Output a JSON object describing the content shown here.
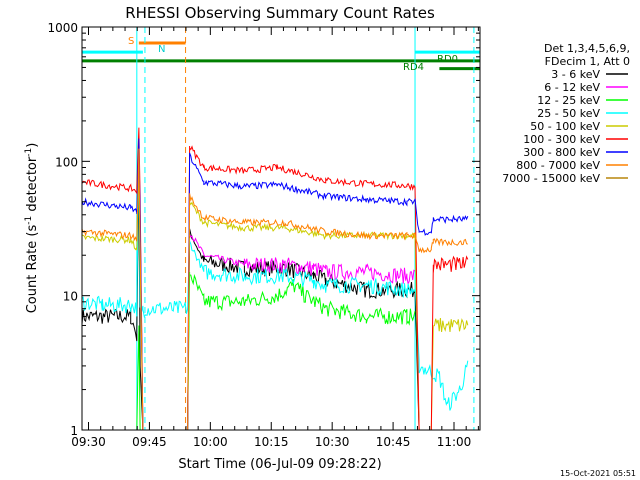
{
  "chart_data": {
    "type": "line",
    "title": "RHESSI Observing Summary Count Rates",
    "xlabel": "Start Time (06-Jul-09 09:28:22)",
    "ylabel_parts": [
      "Count Rate (s",
      "-1",
      " detector",
      "-1",
      ")"
    ],
    "x_range_minutes": [
      0,
      98
    ],
    "x_ticks": [
      {
        "label": "09:30",
        "minute": 1.6
      },
      {
        "label": "09:45",
        "minute": 16.6
      },
      {
        "label": "10:00",
        "minute": 31.6
      },
      {
        "label": "10:15",
        "minute": 46.6
      },
      {
        "label": "10:30",
        "minute": 61.6
      },
      {
        "label": "10:45",
        "minute": 76.6
      },
      {
        "label": "11:00",
        "minute": 91.6
      }
    ],
    "y_scale": "log",
    "y_range": [
      1,
      1000
    ],
    "y_ticks": [
      {
        "label": "1",
        "value": 1
      },
      {
        "label": "10",
        "value": 10
      },
      {
        "label": "100",
        "value": 100
      },
      {
        "label": "1000",
        "value": 1000
      }
    ],
    "legend_header": [
      "Det 1,3,4,5,6,9,",
      "FDecim 1, Att 0"
    ],
    "legend_position": "right",
    "series": [
      {
        "name": "3 - 6 keV",
        "color": "#000000",
        "points": [
          [
            0,
            7
          ],
          [
            12,
            7
          ],
          [
            13.5,
            5
          ],
          [
            14,
            100
          ],
          [
            14.3,
            3
          ],
          [
            15,
            1
          ],
          [
            25,
            1
          ],
          [
            26,
            1
          ],
          [
            26.5,
            30
          ],
          [
            30,
            18
          ],
          [
            40,
            16
          ],
          [
            50,
            16
          ],
          [
            57,
            14
          ],
          [
            60,
            13
          ],
          [
            70,
            11
          ],
          [
            80,
            11
          ],
          [
            82,
            11
          ],
          [
            83,
            1
          ],
          [
            98,
            1
          ]
        ]
      },
      {
        "name": "6 - 12 keV",
        "color": "#ff00ff",
        "points": [
          [
            26.5,
            30
          ],
          [
            30,
            20
          ],
          [
            40,
            17
          ],
          [
            50,
            17
          ],
          [
            57,
            16
          ],
          [
            60,
            15
          ],
          [
            70,
            15
          ],
          [
            80,
            14
          ],
          [
            82,
            14
          ]
        ]
      },
      {
        "name": "12 - 25 keV",
        "color": "#00ff00",
        "points": [
          [
            0,
            1
          ],
          [
            2,
            1
          ],
          [
            3,
            1
          ],
          [
            4,
            1
          ],
          [
            6,
            1
          ],
          [
            8,
            1
          ],
          [
            12,
            1
          ],
          [
            13.5,
            1
          ],
          [
            14,
            6
          ],
          [
            14.3,
            1
          ],
          [
            26,
            1
          ],
          [
            26.5,
            15
          ],
          [
            30,
            9
          ],
          [
            40,
            9
          ],
          [
            48,
            10
          ],
          [
            52,
            12
          ],
          [
            55,
            10
          ],
          [
            60,
            8
          ],
          [
            70,
            7
          ],
          [
            80,
            7
          ],
          [
            82,
            7
          ]
        ]
      },
      {
        "name": "25 - 50 keV",
        "color": "#00ffff",
        "points": [
          [
            0,
            9
          ],
          [
            5,
            8.5
          ],
          [
            12,
            8.5
          ],
          [
            13.5,
            8
          ],
          [
            14,
            120
          ],
          [
            14.3,
            8
          ],
          [
            15,
            8
          ],
          [
            16,
            8
          ],
          [
            26,
            8
          ],
          [
            26.5,
            25
          ],
          [
            30,
            15
          ],
          [
            40,
            14
          ],
          [
            50,
            14
          ],
          [
            57,
            13
          ],
          [
            60,
            12
          ],
          [
            70,
            12
          ],
          [
            80,
            11
          ],
          [
            82,
            11
          ],
          [
            83,
            3
          ],
          [
            88,
            2.5
          ],
          [
            90,
            1.5
          ],
          [
            93,
            2
          ],
          [
            95,
            3
          ]
        ]
      },
      {
        "name": "50 - 100 keV",
        "color": "#cccc00",
        "points": [
          [
            0,
            27
          ],
          [
            12,
            26
          ],
          [
            13.5,
            22
          ],
          [
            14,
            90
          ],
          [
            14.3,
            20
          ],
          [
            15,
            1
          ],
          [
            26,
            1
          ],
          [
            26.5,
            50
          ],
          [
            30,
            35
          ],
          [
            40,
            32
          ],
          [
            50,
            32
          ],
          [
            60,
            28
          ],
          [
            70,
            28
          ],
          [
            80,
            28
          ],
          [
            82,
            28
          ],
          [
            83,
            1
          ],
          [
            86,
            1
          ],
          [
            86.5,
            6
          ],
          [
            95,
            6
          ]
        ]
      },
      {
        "name": "100 - 300 keV",
        "color": "#ff0000",
        "points": [
          [
            0,
            70
          ],
          [
            12,
            63
          ],
          [
            13.5,
            60
          ],
          [
            14,
            180
          ],
          [
            14.3,
            55
          ],
          [
            15,
            1
          ],
          [
            26,
            1
          ],
          [
            26.5,
            130
          ],
          [
            30,
            90
          ],
          [
            40,
            85
          ],
          [
            48,
            90
          ],
          [
            55,
            80
          ],
          [
            60,
            72
          ],
          [
            70,
            68
          ],
          [
            80,
            66
          ],
          [
            82,
            65
          ],
          [
            83,
            1
          ],
          [
            86,
            1
          ],
          [
            86.5,
            17
          ],
          [
            95,
            17
          ]
        ]
      },
      {
        "name": "300 - 800 keV",
        "color": "#0000ff",
        "points": [
          [
            0,
            50
          ],
          [
            12,
            45
          ],
          [
            13.5,
            42
          ],
          [
            14,
            140
          ],
          [
            14.3,
            40
          ],
          [
            15,
            1
          ],
          [
            26,
            1
          ],
          [
            26.5,
            110
          ],
          [
            30,
            70
          ],
          [
            40,
            65
          ],
          [
            48,
            67
          ],
          [
            55,
            60
          ],
          [
            60,
            55
          ],
          [
            70,
            52
          ],
          [
            80,
            50
          ],
          [
            82,
            50
          ],
          [
            83,
            30
          ],
          [
            86,
            30
          ],
          [
            86.5,
            37
          ],
          [
            95,
            37
          ]
        ]
      },
      {
        "name": "800 - 7000 keV",
        "color": "#ff8000",
        "points": [
          [
            0,
            30
          ],
          [
            12,
            28
          ],
          [
            13.5,
            26
          ],
          [
            14,
            120
          ],
          [
            14.3,
            25
          ],
          [
            15,
            1
          ],
          [
            26,
            1
          ],
          [
            26.5,
            55
          ],
          [
            30,
            38
          ],
          [
            40,
            35
          ],
          [
            50,
            35
          ],
          [
            60,
            30
          ],
          [
            70,
            28
          ],
          [
            80,
            28
          ],
          [
            82,
            28
          ],
          [
            83,
            22
          ],
          [
            86,
            22
          ],
          [
            86.5,
            25
          ],
          [
            95,
            25
          ]
        ]
      },
      {
        "name": "7000 - 15000 keV",
        "color": "#b8860b",
        "points": [
          [
            0,
            1
          ],
          [
            13,
            1
          ],
          [
            13.5,
            1
          ],
          [
            14,
            1
          ],
          [
            14.3,
            1
          ],
          [
            26,
            1
          ],
          [
            26.5,
            1
          ],
          [
            30,
            1
          ],
          [
            40,
            1
          ],
          [
            50,
            1
          ],
          [
            60,
            1
          ],
          [
            70,
            1
          ],
          [
            80,
            1
          ],
          [
            82,
            1
          ],
          [
            83,
            1
          ],
          [
            98,
            1
          ]
        ]
      }
    ],
    "flags": [
      {
        "label": "S",
        "color": "#ff8000",
        "start": 14,
        "end": 25.5,
        "y_value": 760
      },
      {
        "label": "N",
        "color": "#00ffff",
        "start": 0,
        "end": 15,
        "y_value": 650
      },
      {
        "label": "N",
        "color": "#00ffff",
        "start": 82,
        "end": 98,
        "y_value": 650
      },
      {
        "label": "RD0",
        "color": "#008000",
        "start": 0,
        "end": 98,
        "y_value": 560
      },
      {
        "label": "RD4",
        "color": "#008000",
        "start": 88,
        "end": 98,
        "y_value": 490
      }
    ],
    "flag_labels": {
      "s": "S",
      "n": "N",
      "rd0": "RD0",
      "rd4": "RD4"
    },
    "vlines": [
      {
        "minute": 13.5,
        "color": "#00ffff",
        "style": "solid"
      },
      {
        "minute": 15.5,
        "color": "#00ffff",
        "style": "dashed"
      },
      {
        "minute": 25.5,
        "color": "#ff8000",
        "style": "dashed"
      },
      {
        "minute": 82,
        "color": "#00ffff",
        "style": "solid"
      },
      {
        "minute": 96.5,
        "color": "#00ffff",
        "style": "dashed"
      }
    ]
  },
  "footer_timestamp": "15-Oct-2021 05:51"
}
